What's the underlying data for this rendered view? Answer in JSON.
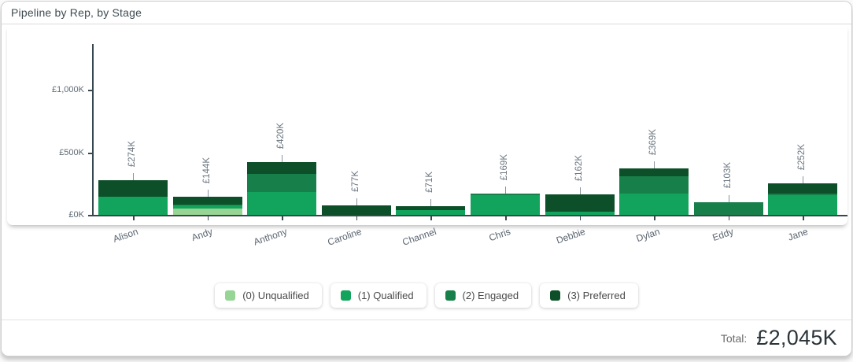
{
  "header": {
    "title": "Pipeline by Rep, by Stage"
  },
  "chart_data": {
    "type": "bar",
    "stacked": true,
    "title": "Pipeline by Rep, by Stage",
    "xlabel": "",
    "ylabel": "",
    "currency": "£",
    "categories": [
      "Alison",
      "Andy",
      "Anthony",
      "Caroline",
      "Channel",
      "Chris",
      "Debbie",
      "Dylan",
      "Eddy",
      "Jane"
    ],
    "series": [
      {
        "name": "(0) Unqualified",
        "color": "#97d594",
        "values": [
          0,
          50,
          0,
          0,
          0,
          0,
          0,
          0,
          0,
          0
        ]
      },
      {
        "name": "(1) Qualified",
        "color": "#12a45d",
        "values": [
          145,
          25,
          185,
          0,
          39,
          156,
          25,
          170,
          0,
          157
        ]
      },
      {
        "name": "(2) Engaged",
        "color": "#17804a",
        "values": [
          0,
          6,
          145,
          0,
          0,
          13,
          0,
          139,
          103,
          13
        ]
      },
      {
        "name": "(3) Preferred",
        "color": "#0c4f28",
        "values": [
          129,
          63,
          90,
          77,
          32,
          0,
          137,
          60,
          0,
          82
        ]
      }
    ],
    "bar_total_labels": [
      "£274K",
      "£144K",
      "£420K",
      "£77K",
      "£71K",
      "£169K",
      "£162K",
      "£369K",
      "£103K",
      "£252K"
    ],
    "bar_totals_k": [
      274,
      144,
      420,
      77,
      71,
      169,
      162,
      369,
      103,
      252
    ],
    "y_ticks": [
      {
        "label": "£0K",
        "value": 0
      },
      {
        "label": "£500K",
        "value": 500
      },
      {
        "label": "£1,000K",
        "value": 1000
      }
    ],
    "ylim": [
      0,
      1200
    ],
    "grid": false,
    "legend_position": "bottom"
  },
  "footer": {
    "total_label": "Total:",
    "total_value": "£2,045K"
  }
}
